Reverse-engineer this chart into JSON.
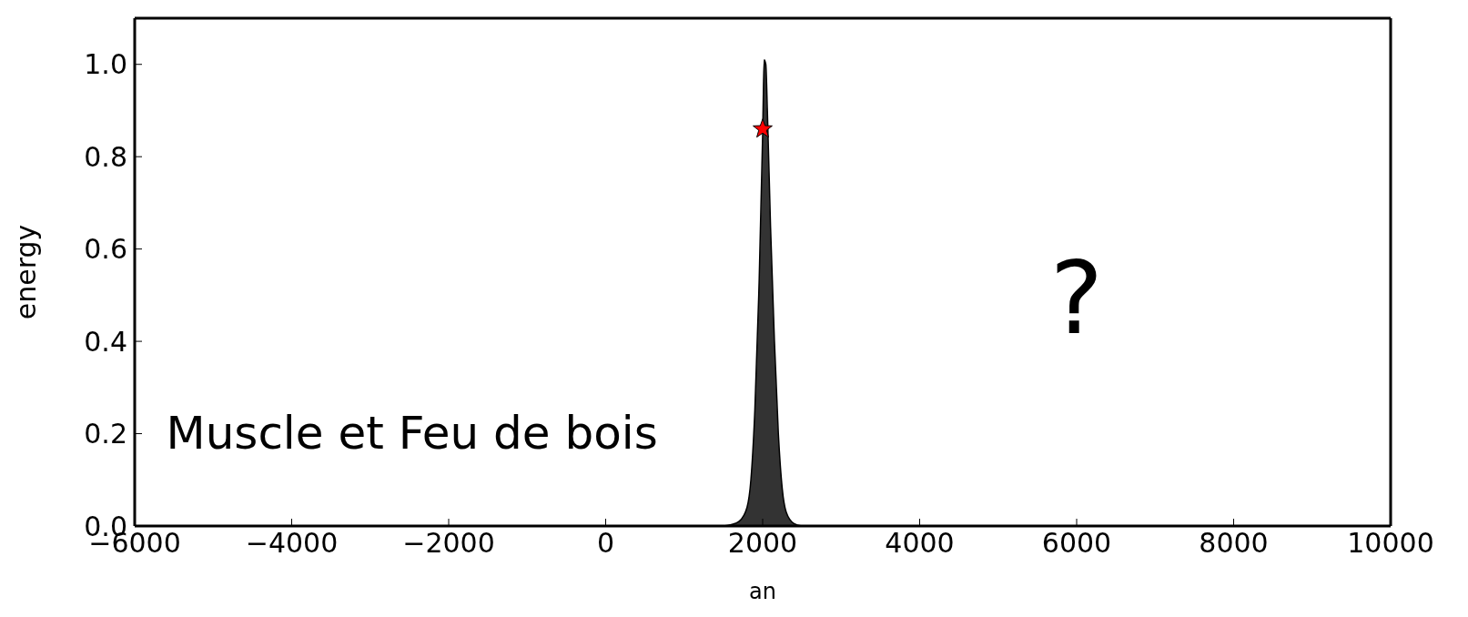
{
  "chart_data": {
    "type": "area",
    "xlabel": "an",
    "ylabel": "energy",
    "annotations": [
      "Muscle et Feu de bois",
      "?"
    ],
    "xlim": [
      -6000,
      10000
    ],
    "xticks": [
      -6000,
      -4000,
      -2000,
      0,
      2000,
      4000,
      6000,
      8000,
      10000
    ],
    "ylim": [
      0,
      1.1
    ],
    "yticks": [
      {
        "value": 0,
        "label": "0.0"
      },
      {
        "value": 0.2,
        "label": "0.2"
      },
      {
        "value": 0.4,
        "label": "0.4"
      },
      {
        "value": 0.6,
        "label": "0.6"
      },
      {
        "value": 0.8,
        "label": "0.8"
      },
      {
        "value": 1,
        "label": "1.0"
      }
    ],
    "grid": false,
    "legend": false,
    "series": [
      {
        "color": "#333333",
        "x": [
          1500,
          1600,
          1700,
          1800,
          1850,
          1900,
          1950,
          2000,
          2010,
          2020,
          2040,
          2060,
          2100,
          2150,
          2200,
          2250,
          2300,
          2400,
          2500
        ],
        "values": [
          0,
          0.003,
          0.01,
          0.04,
          0.1,
          0.25,
          0.5,
          0.85,
          0.95,
          1.01,
          1.0,
          0.9,
          0.65,
          0.4,
          0.2,
          0.08,
          0.03,
          0.005,
          0
        ]
      },
      {
        "type": "scatter",
        "color": "#ff0000",
        "marker": "star",
        "x": [
          2000
        ],
        "values": [
          0.86
        ]
      }
    ]
  }
}
